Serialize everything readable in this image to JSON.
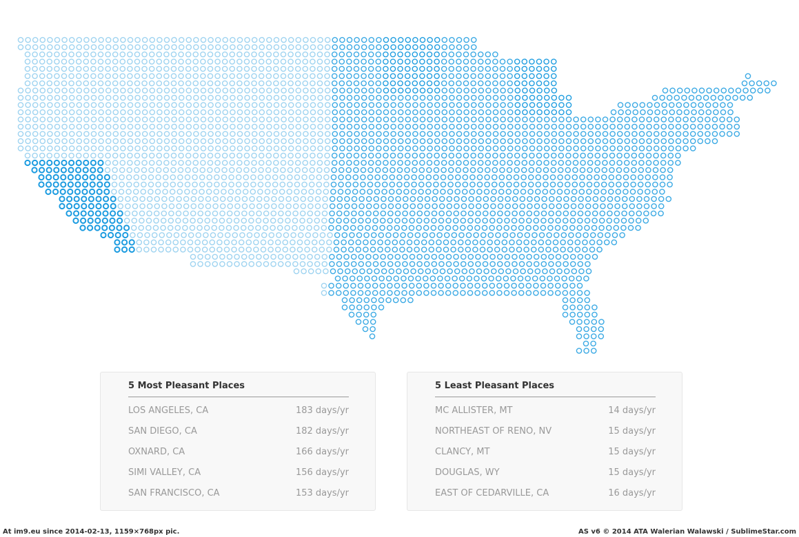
{
  "most_pleasant": {
    "title": "5 Most Pleasant Places",
    "rows": [
      [
        "LOS ANGELES, CA",
        "183 days/yr"
      ],
      [
        "SAN DIEGO, CA",
        "182 days/yr"
      ],
      [
        "OXNARD, CA",
        "166 days/yr"
      ],
      [
        "SIMI VALLEY, CA",
        "156 days/yr"
      ],
      [
        "SAN FRANCISCO, CA",
        "153 days/yr"
      ]
    ]
  },
  "least_pleasant": {
    "title": "5 Least Pleasant Places",
    "rows": [
      [
        "MC ALLISTER, MT",
        "14 days/yr"
      ],
      [
        "NORTHEAST OF RENO, NV",
        "15 days/yr"
      ],
      [
        "CLANCY, MT",
        "15 days/yr"
      ],
      [
        "DOUGLAS, WY",
        "15 days/yr"
      ],
      [
        "EAST OF CEDARVILLE, CA",
        "16 days/yr"
      ]
    ]
  },
  "footer": {
    "left": "At im9.eu  since 2014-02-13, 1159×768px pic.",
    "right": "AS v6 © 2014 ATA Walerian Walawski / SublimeStar.com"
  }
}
